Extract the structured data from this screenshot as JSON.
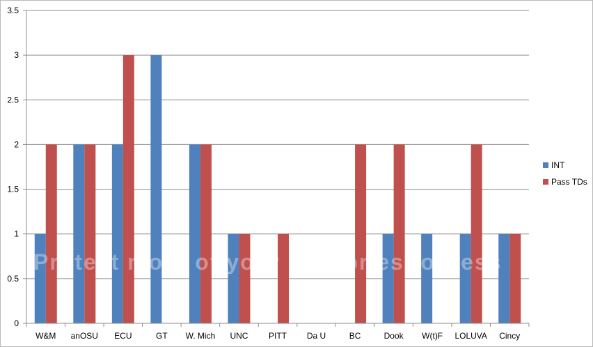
{
  "chart_data": {
    "type": "bar",
    "categories": [
      "W&M",
      "anOSU",
      "ECU",
      "GT",
      "W. Mich",
      "UNC",
      "PITT",
      "Da U",
      "BC",
      "Dook",
      "W(t)F",
      "LOLUVA",
      "Cincy"
    ],
    "series": [
      {
        "name": "INT",
        "color": "#4f81bd",
        "values": [
          1,
          2,
          2,
          3,
          2,
          1,
          0,
          0,
          0,
          1,
          1,
          1,
          1
        ]
      },
      {
        "name": "Pass TDs",
        "color": "#c0504d",
        "values": [
          2,
          2,
          3,
          0,
          2,
          1,
          1,
          0,
          2,
          2,
          0,
          2,
          1
        ]
      }
    ],
    "y_ticks": [
      "0",
      "0.5",
      "1",
      "1.5",
      "2",
      "2.5",
      "3",
      "3.5"
    ],
    "ylim": [
      0,
      3.5
    ],
    "y_step": 0.5,
    "gridlines": true,
    "legend_position": "right",
    "title": "",
    "xlabel": "",
    "ylabel": ""
  },
  "watermark": {
    "text": "Protect more of your memories for less"
  }
}
